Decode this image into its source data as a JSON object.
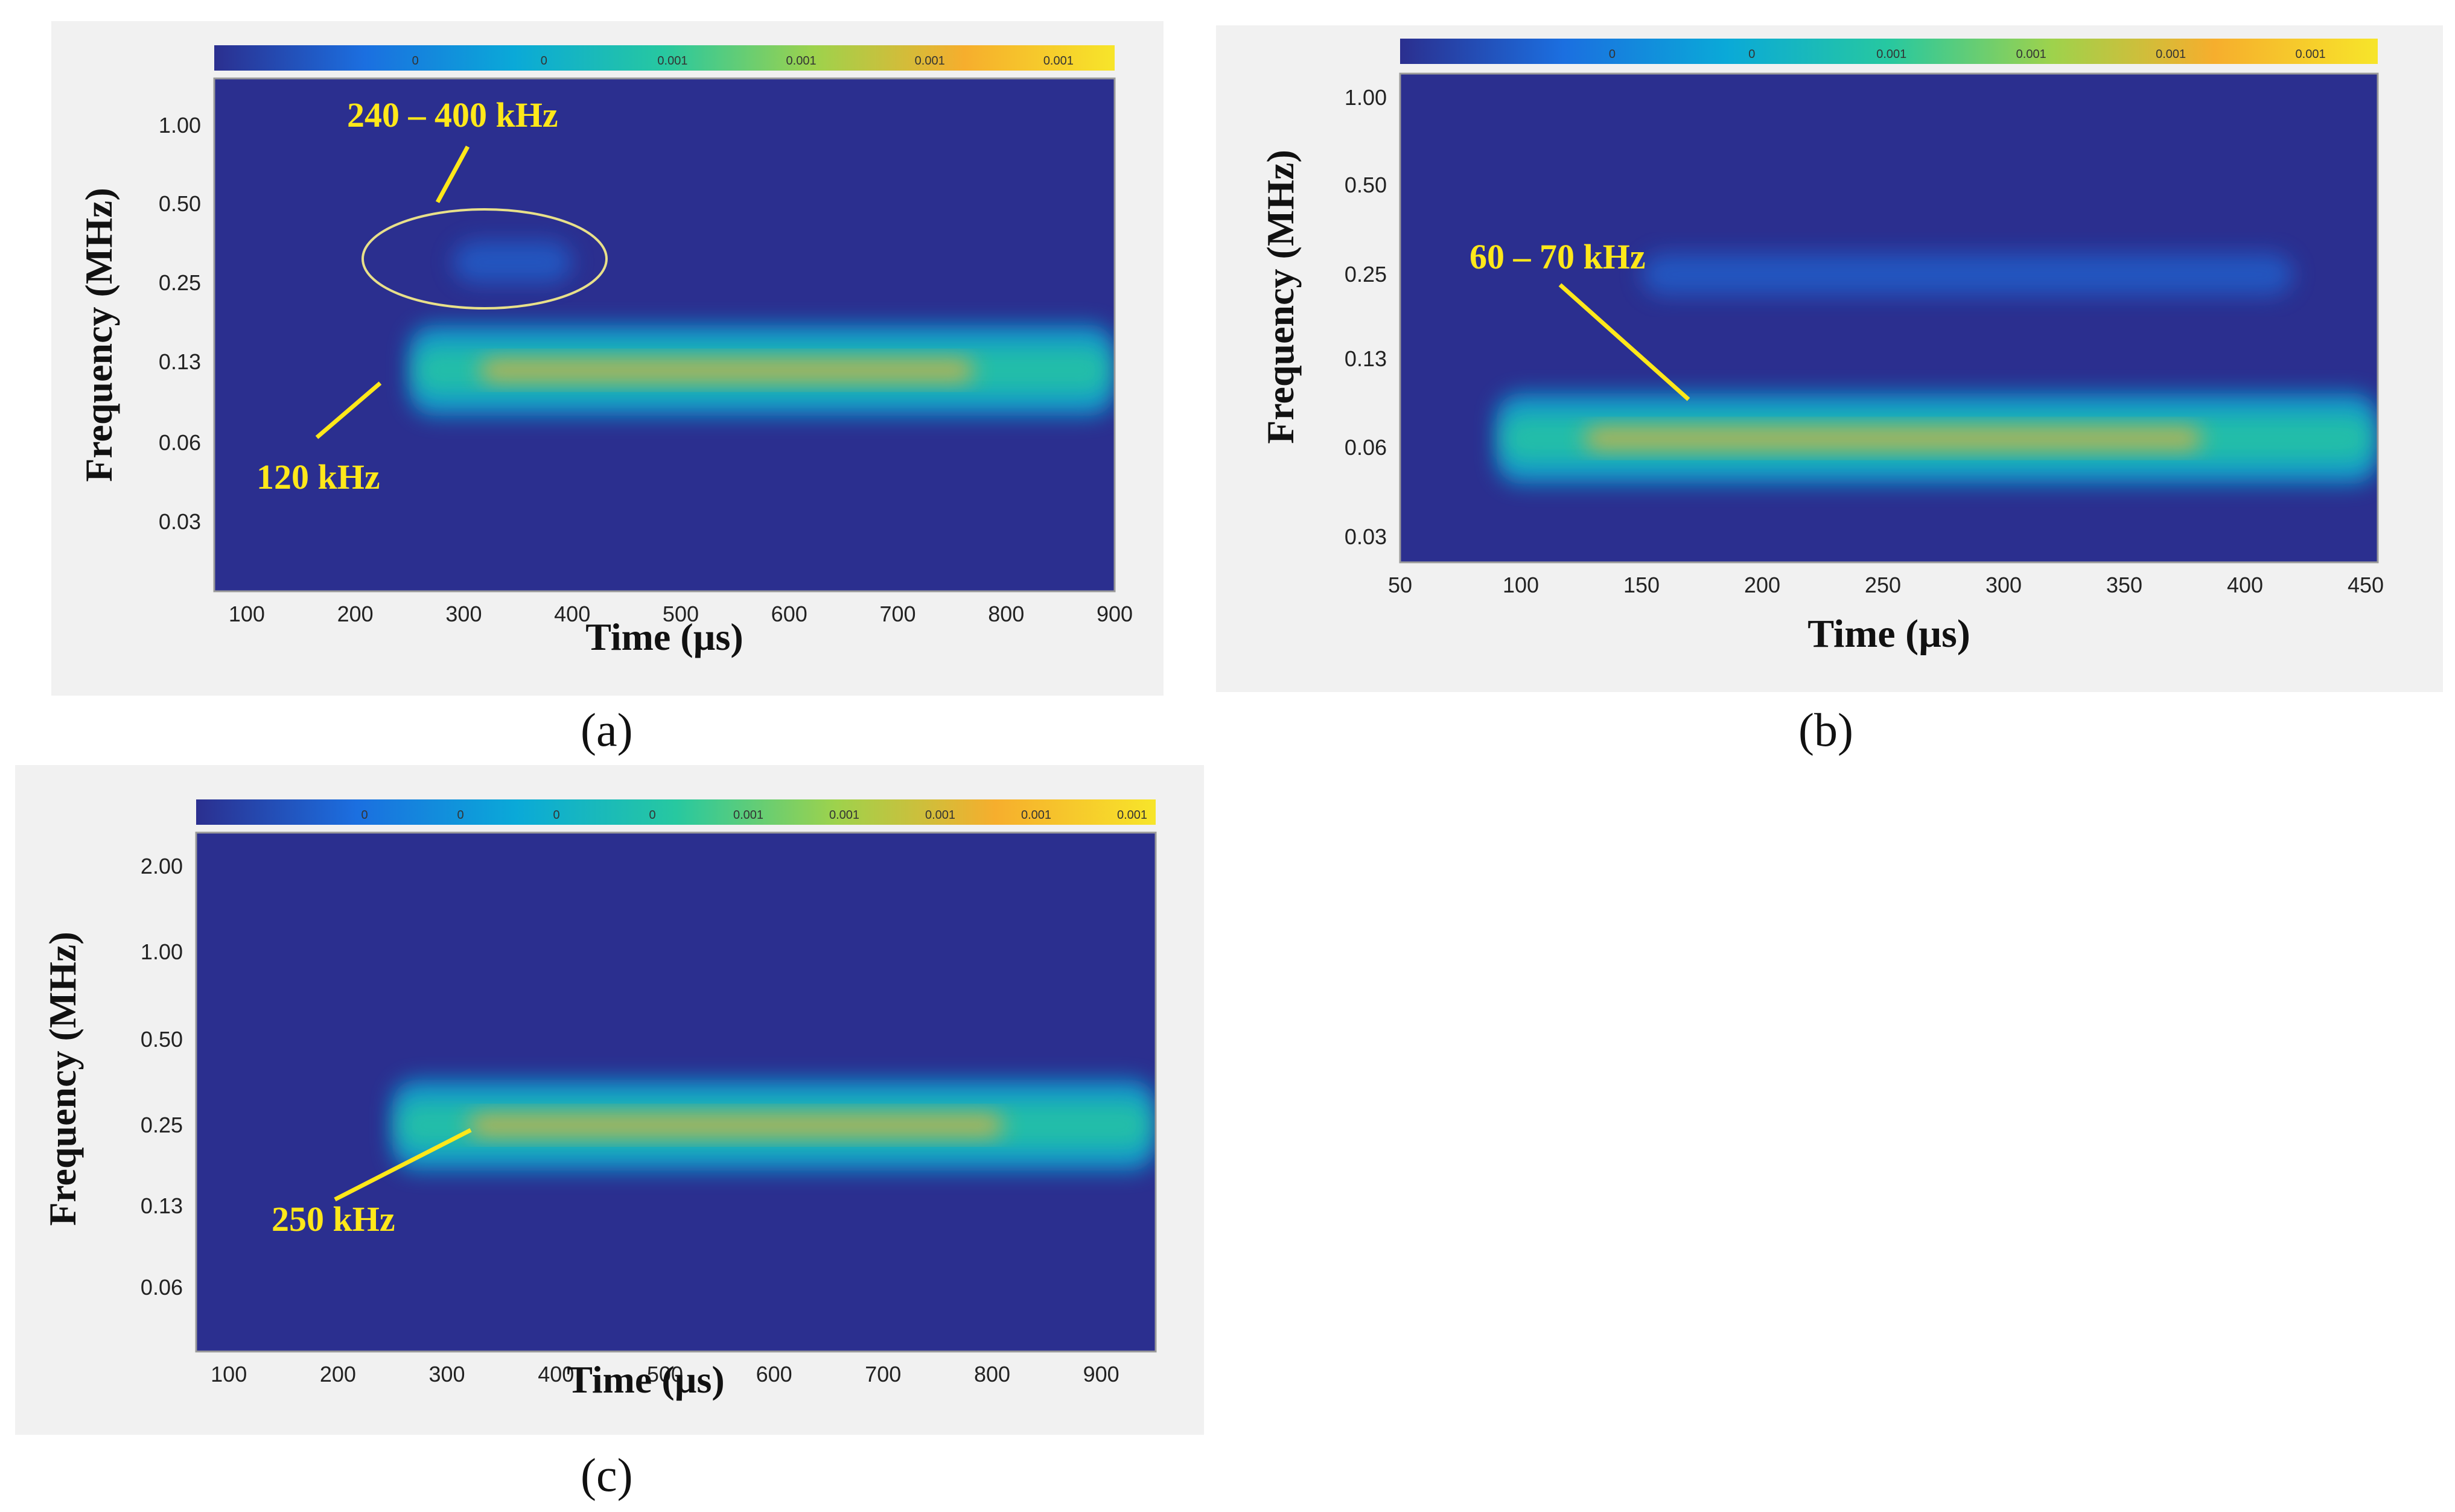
{
  "chart_data": [
    {
      "panel": "(a)",
      "type": "heatmap",
      "title": "",
      "xlabel": "Time (µs)",
      "ylabel": "Frequency (MHz)",
      "xlim": [
        70,
        900
      ],
      "x_ticks": [
        "100",
        "200",
        "300",
        "400",
        "500",
        "600",
        "700",
        "800",
        "900"
      ],
      "y_ticks": [
        "1.00",
        "0.50",
        "0.25",
        "0.13",
        "0.06",
        "0.03"
      ],
      "colorbar_ticks": [
        "0",
        "0",
        "0.001",
        "0.001",
        "0.001",
        "0.001"
      ],
      "bands": [
        {
          "label": "120 kHz",
          "t_start": 250,
          "t_end": 900,
          "freq_mhz": 0.12,
          "intensity": "high"
        },
        {
          "label": "240 – 400 kHz",
          "t_start": 290,
          "t_end": 400,
          "freq_mhz": 0.3,
          "intensity": "low"
        }
      ],
      "annotations": [
        {
          "text": "240 – 400 kHz",
          "time": 300,
          "freq_mhz": 0.35,
          "encircled": true
        },
        {
          "text": "120 kHz",
          "time": 255,
          "freq_mhz": 0.12
        }
      ]
    },
    {
      "panel": "(b)",
      "type": "heatmap",
      "title": "",
      "xlabel": "Time (µs)",
      "ylabel": "Frequency (MHz)",
      "xlim": [
        50,
        455
      ],
      "x_ticks": [
        "50",
        "100",
        "150",
        "200",
        "250",
        "300",
        "350",
        "400",
        "450"
      ],
      "y_ticks": [
        "1.00",
        "0.50",
        "0.25",
        "0.13",
        "0.06",
        "0.03"
      ],
      "colorbar_ticks": [
        "0",
        "0",
        "0.001",
        "0.001",
        "0.001",
        "0.001"
      ],
      "bands": [
        {
          "label": "60 – 70 kHz",
          "t_start": 90,
          "t_end": 455,
          "freq_mhz": 0.065,
          "intensity": "high"
        },
        {
          "label": "",
          "t_start": 150,
          "t_end": 420,
          "freq_mhz": 0.25,
          "intensity": "low"
        }
      ],
      "annotations": [
        {
          "text": "60 – 70 kHz",
          "time": 185,
          "freq_mhz": 0.07
        }
      ]
    },
    {
      "panel": "(c)",
      "type": "heatmap",
      "title": "",
      "xlabel": "Time (µs)",
      "ylabel": "Frequency (MHz)",
      "xlim": [
        70,
        950
      ],
      "x_ticks": [
        "100",
        "200",
        "300",
        "400",
        "500",
        "600",
        "700",
        "800",
        "900"
      ],
      "y_ticks": [
        "2.00",
        "1.00",
        "0.50",
        "0.25",
        "0.13",
        "0.06"
      ],
      "colorbar_ticks": [
        "0",
        "0",
        "0",
        "0",
        "0.001",
        "0.001",
        "0.001",
        "0.001",
        "0.001"
      ],
      "bands": [
        {
          "label": "250 kHz",
          "t_start": 250,
          "t_end": 950,
          "freq_mhz": 0.25,
          "intensity": "high"
        }
      ],
      "annotations": [
        {
          "text": "250 kHz",
          "time": 305,
          "freq_mhz": 0.25
        }
      ]
    }
  ],
  "colors": {
    "background": "#2b2f8f",
    "colormap": [
      "#2b2f8f",
      "#1b6fe0",
      "#0aa9d8",
      "#27c8a0",
      "#9ed24c",
      "#f6ae2d",
      "#f7e52a"
    ],
    "annotation": "#ffe81a",
    "ellipse": "#e8e08a"
  }
}
